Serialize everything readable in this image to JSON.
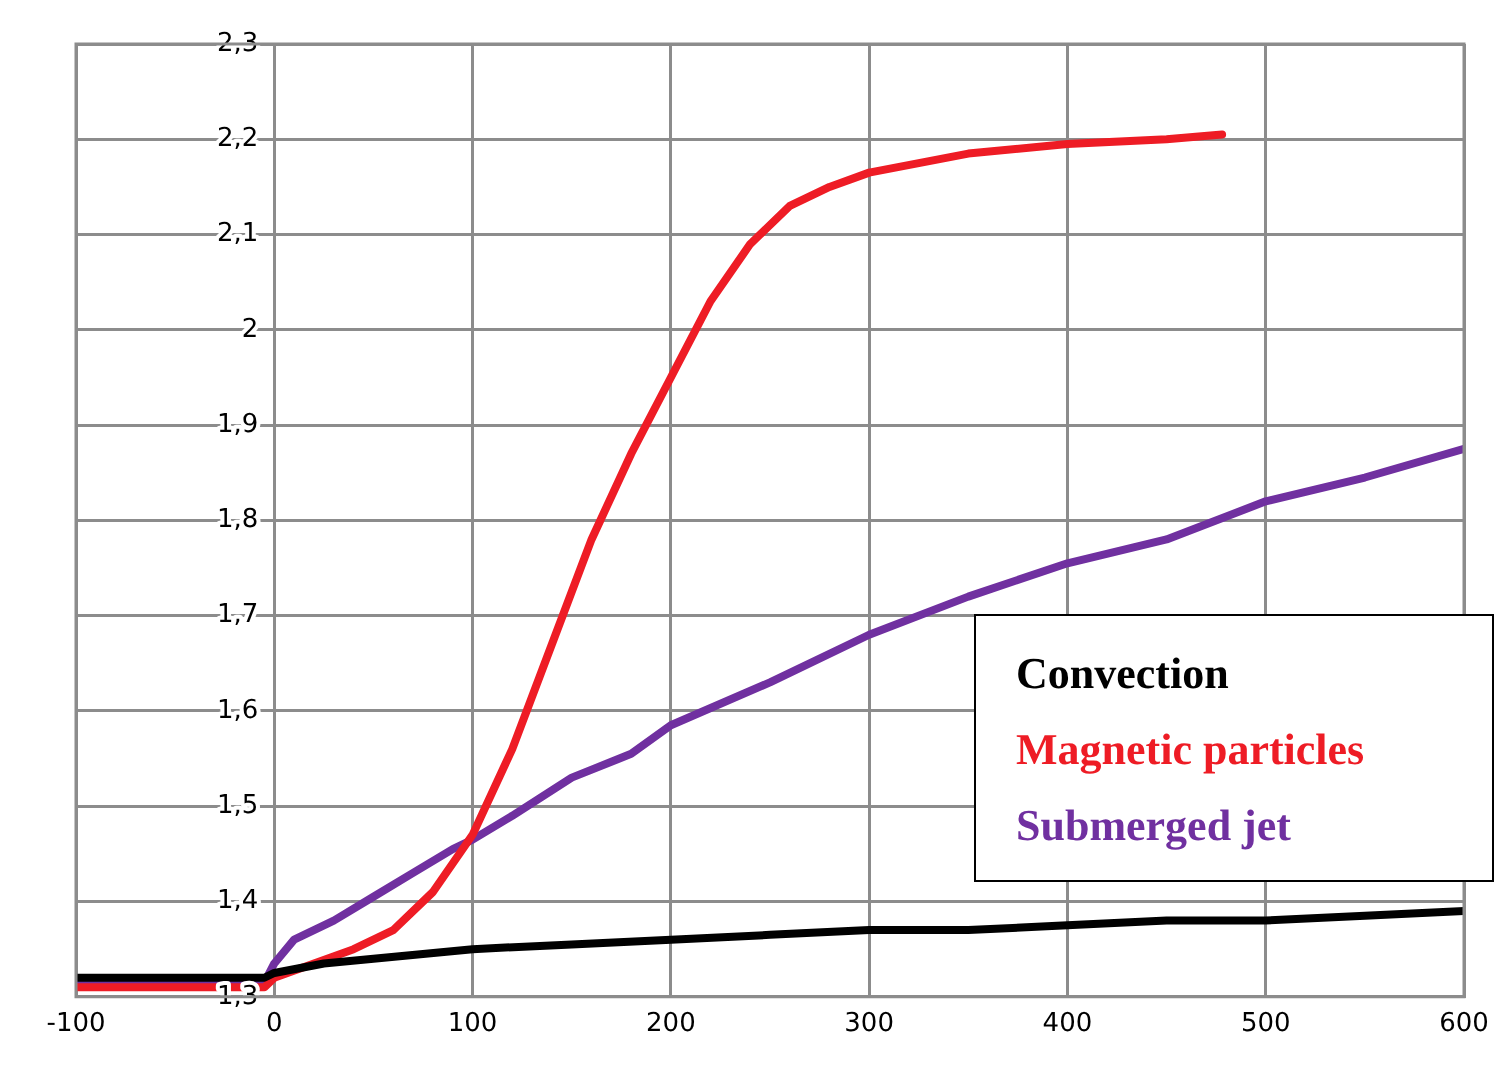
{
  "chart_data": {
    "type": "line",
    "xlim": [
      -100,
      600
    ],
    "xticks": [
      -100,
      0,
      100,
      200,
      300,
      400,
      500,
      600
    ],
    "ylim": [
      1.3,
      2.3
    ],
    "yticks": [
      {
        "value": 1.3,
        "label": "1,3"
      },
      {
        "value": 1.4,
        "label": "1,4"
      },
      {
        "value": 1.5,
        "label": "1,5"
      },
      {
        "value": 1.6,
        "label": "1,6"
      },
      {
        "value": 1.7,
        "label": "1,7"
      },
      {
        "value": 1.8,
        "label": "1,8"
      },
      {
        "value": 1.9,
        "label": "1,9"
      },
      2,
      {
        "value": 2.1,
        "label": "2,1"
      },
      {
        "value": 2.2,
        "label": "2,2"
      },
      {
        "value": 2.3,
        "label": "2,3"
      }
    ],
    "grid": true,
    "legend": "right",
    "marker": "none",
    "line_style": "solid",
    "series": [
      {
        "name": "Convection",
        "color": "#000000",
        "x": [
          -100,
          -50,
          -5,
          0,
          25,
          50,
          75,
          100,
          150,
          200,
          250,
          300,
          350,
          400,
          450,
          500,
          550,
          600
        ],
        "values": [
          1.32,
          1.32,
          1.32,
          1.325,
          1.335,
          1.34,
          1.345,
          1.35,
          1.355,
          1.36,
          1.365,
          1.37,
          1.37,
          1.375,
          1.38,
          1.38,
          1.385,
          1.39
        ]
      },
      {
        "name": "Magnetic particles",
        "color": "#ee1c25",
        "x": [
          -100,
          -50,
          -5,
          0,
          20,
          40,
          60,
          80,
          100,
          120,
          140,
          160,
          180,
          200,
          220,
          240,
          260,
          280,
          300,
          350,
          400,
          450,
          478
        ],
        "values": [
          1.31,
          1.31,
          1.31,
          1.32,
          1.335,
          1.35,
          1.37,
          1.41,
          1.47,
          1.56,
          1.67,
          1.78,
          1.87,
          1.95,
          2.03,
          2.09,
          2.13,
          2.15,
          2.165,
          2.185,
          2.195,
          2.2,
          2.205
        ]
      },
      {
        "name": "Submerged jet",
        "color": "#7030a0",
        "x": [
          -100,
          -50,
          -5,
          0,
          10,
          30,
          50,
          70,
          90,
          100,
          120,
          150,
          180,
          200,
          250,
          300,
          350,
          400,
          450,
          500,
          550,
          600
        ],
        "values": [
          1.315,
          1.315,
          1.315,
          1.335,
          1.36,
          1.38,
          1.405,
          1.43,
          1.455,
          1.465,
          1.49,
          1.53,
          1.555,
          1.585,
          1.63,
          1.68,
          1.72,
          1.755,
          1.78,
          1.82,
          1.845,
          1.875
        ]
      }
    ]
  }
}
